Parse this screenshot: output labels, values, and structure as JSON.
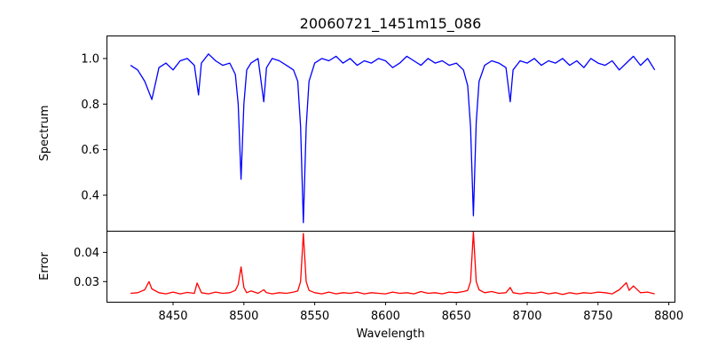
{
  "chart_data": [
    {
      "type": "line",
      "title": "20060721_1451m15_086",
      "xlabel": "Wavelength",
      "ylabel": "Spectrum",
      "xlim": [
        8403,
        8804
      ],
      "ylim": [
        0.244,
        1.101
      ],
      "yticks": [
        "0.4",
        "0.6",
        "0.8",
        "1.0"
      ],
      "color": "#0000ff",
      "x": [
        8420,
        8425,
        8430,
        8435,
        8440,
        8445,
        8450,
        8455,
        8460,
        8465,
        8468,
        8470,
        8475,
        8480,
        8485,
        8490,
        8494,
        8496,
        8498,
        8500,
        8502,
        8505,
        8510,
        8514,
        8516,
        8520,
        8525,
        8530,
        8535,
        8538,
        8540,
        8542,
        8544,
        8546,
        8550,
        8555,
        8560,
        8565,
        8570,
        8575,
        8580,
        8585,
        8590,
        8595,
        8600,
        8605,
        8610,
        8615,
        8620,
        8625,
        8630,
        8635,
        8640,
        8645,
        8650,
        8655,
        8658,
        8660,
        8662,
        8664,
        8666,
        8670,
        8675,
        8680,
        8685,
        8688,
        8690,
        8695,
        8700,
        8705,
        8710,
        8715,
        8720,
        8725,
        8730,
        8735,
        8740,
        8745,
        8750,
        8755,
        8760,
        8765,
        8770,
        8775,
        8780,
        8785,
        8790
      ],
      "y": [
        0.97,
        0.95,
        0.9,
        0.82,
        0.96,
        0.98,
        0.95,
        0.99,
        1.0,
        0.97,
        0.84,
        0.98,
        1.02,
        0.99,
        0.97,
        0.98,
        0.93,
        0.8,
        0.47,
        0.8,
        0.95,
        0.98,
        1.0,
        0.81,
        0.96,
        1.0,
        0.99,
        0.97,
        0.95,
        0.9,
        0.7,
        0.28,
        0.7,
        0.9,
        0.98,
        1.0,
        0.99,
        1.01,
        0.98,
        1.0,
        0.97,
        0.99,
        0.98,
        1.0,
        0.99,
        0.96,
        0.98,
        1.01,
        0.99,
        0.97,
        1.0,
        0.98,
        0.99,
        0.97,
        0.98,
        0.95,
        0.88,
        0.7,
        0.31,
        0.72,
        0.9,
        0.97,
        0.99,
        0.98,
        0.96,
        0.81,
        0.95,
        0.99,
        0.98,
        1.0,
        0.97,
        0.99,
        0.98,
        1.0,
        0.97,
        0.99,
        0.96,
        1.0,
        0.98,
        0.97,
        0.99,
        0.95,
        0.98,
        1.01,
        0.97,
        1.0,
        0.95
      ]
    },
    {
      "type": "line",
      "xlabel": "Wavelength",
      "ylabel": "Error",
      "xlim": [
        8403,
        8804
      ],
      "ylim": [
        0.0231,
        0.0474
      ],
      "xticks": [
        "8450",
        "8500",
        "8550",
        "8600",
        "8650",
        "8700",
        "8750",
        "8800"
      ],
      "yticks": [
        "0.03",
        "0.04"
      ],
      "color": "#ff0000",
      "x": [
        8420,
        8425,
        8430,
        8433,
        8435,
        8440,
        8445,
        8450,
        8455,
        8460,
        8465,
        8467,
        8470,
        8475,
        8480,
        8485,
        8490,
        8494,
        8496,
        8498,
        8500,
        8502,
        8505,
        8510,
        8514,
        8516,
        8520,
        8525,
        8530,
        8535,
        8538,
        8540,
        8542,
        8544,
        8546,
        8550,
        8555,
        8560,
        8565,
        8570,
        8575,
        8580,
        8585,
        8590,
        8595,
        8600,
        8605,
        8610,
        8615,
        8620,
        8625,
        8630,
        8635,
        8640,
        8645,
        8650,
        8655,
        8658,
        8660,
        8662,
        8664,
        8666,
        8670,
        8675,
        8680,
        8685,
        8688,
        8690,
        8695,
        8700,
        8705,
        8710,
        8715,
        8720,
        8725,
        8730,
        8735,
        8740,
        8745,
        8750,
        8755,
        8760,
        8765,
        8770,
        8772,
        8775,
        8780,
        8785,
        8790
      ],
      "y": [
        0.026,
        0.0262,
        0.0272,
        0.03,
        0.0275,
        0.0262,
        0.0258,
        0.0264,
        0.0258,
        0.0263,
        0.026,
        0.0295,
        0.0262,
        0.0258,
        0.0264,
        0.026,
        0.0262,
        0.027,
        0.029,
        0.035,
        0.028,
        0.0262,
        0.0268,
        0.026,
        0.0272,
        0.0262,
        0.0258,
        0.0262,
        0.026,
        0.0264,
        0.0268,
        0.03,
        0.0465,
        0.03,
        0.027,
        0.0262,
        0.0258,
        0.0264,
        0.0258,
        0.0262,
        0.026,
        0.0264,
        0.0258,
        0.0262,
        0.026,
        0.0258,
        0.0264,
        0.026,
        0.0262,
        0.0258,
        0.0266,
        0.026,
        0.0262,
        0.0258,
        0.0264,
        0.0262,
        0.0266,
        0.027,
        0.03,
        0.047,
        0.03,
        0.0272,
        0.0262,
        0.0266,
        0.026,
        0.0262,
        0.028,
        0.0262,
        0.0258,
        0.0262,
        0.026,
        0.0264,
        0.0258,
        0.0262,
        0.0256,
        0.0262,
        0.0258,
        0.0262,
        0.026,
        0.0264,
        0.0262,
        0.0258,
        0.0272,
        0.0296,
        0.027,
        0.0285,
        0.0262,
        0.0264,
        0.0258
      ]
    }
  ]
}
